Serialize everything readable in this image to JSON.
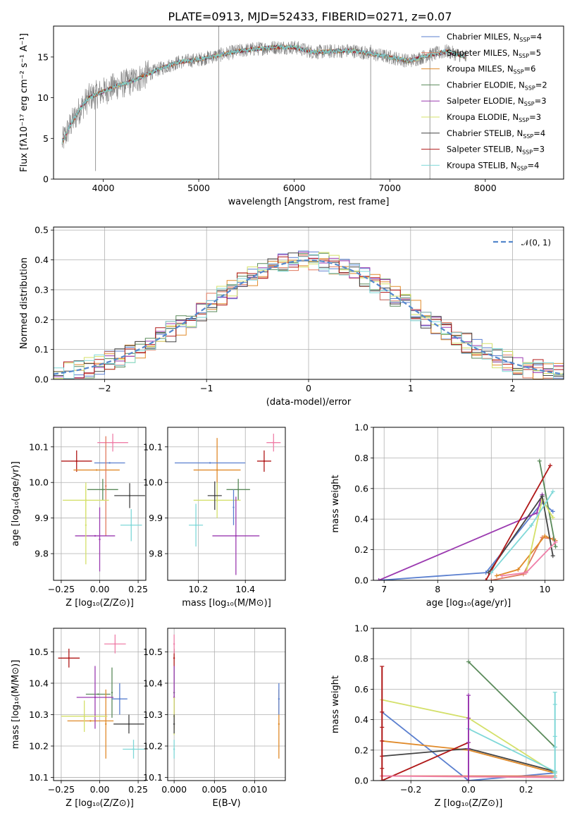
{
  "title": "PLATE=0913, MJD=52433, FIBERID=0271, z=0.07",
  "colors": {
    "chabrier_miles": "#5a7fcf",
    "salpeter_miles": "#e07a5f",
    "kroupa_miles": "#e08a2a",
    "chabrier_elodie": "#5a8a5a",
    "salpeter_elodie": "#9b3ab0",
    "kroupa_elodie": "#d4e06a",
    "chabrier_stelib": "#444444",
    "salpeter_stelib": "#b01818",
    "kroupa_stelib": "#7fd8d8",
    "pink": "#ef7fa8",
    "data": "#808080",
    "normal": "#5588cc"
  },
  "chart_data": [
    {
      "type": "line",
      "panel": "spectrum",
      "title": "PLATE=0913, MJD=52433, FIBERID=0271, z=0.07",
      "xlabel": "wavelength [Angstrom, rest frame]",
      "ylabel": "Flux [fλ10⁻¹⁷ erg cm⁻² s⁻¹ A⁻¹]",
      "xlim": [
        3480,
        8820
      ],
      "ylim": [
        0,
        18.8
      ],
      "xticks": [
        4000,
        5000,
        6000,
        7000,
        8000
      ],
      "yticks": [
        0,
        5,
        10,
        15
      ],
      "grid": false,
      "legend_position": "right",
      "legend": [
        {
          "label": "Chabrier MILES, N",
          "sub": "SSP",
          "eq": "=4",
          "color": "#5a7fcf"
        },
        {
          "label": "Salpeter MILES, N",
          "sub": "SSP",
          "eq": "=5",
          "color": "#e07a5f"
        },
        {
          "label": "Kroupa MILES, N",
          "sub": "SSP",
          "eq": "=6",
          "color": "#e08a2a"
        },
        {
          "label": "Chabrier ELODIE, N",
          "sub": "SSP",
          "eq": "=2",
          "color": "#5a8a5a"
        },
        {
          "label": "Salpeter ELODIE, N",
          "sub": "SSP",
          "eq": "=3",
          "color": "#9b3ab0"
        },
        {
          "label": "Kroupa ELODIE, N",
          "sub": "SSP",
          "eq": "=3",
          "color": "#d4e06a"
        },
        {
          "label": "Chabrier STELIB, N",
          "sub": "SSP",
          "eq": "=4",
          "color": "#444444"
        },
        {
          "label": "Salpeter STELIB, N",
          "sub": "SSP",
          "eq": "=3",
          "color": "#b01818"
        },
        {
          "label": "Kroupa STELIB, N",
          "sub": "SSP",
          "eq": "=4",
          "color": "#7fd8d8"
        }
      ],
      "continuum": {
        "x": [
          3570,
          3650,
          3750,
          3850,
          3950,
          4050,
          4150,
          4300,
          4450,
          4600,
          4800,
          5000,
          5200,
          5400,
          5600,
          5800,
          6000,
          6200,
          6400,
          6600,
          6800,
          7000,
          7200,
          7400,
          7600,
          7800
        ],
        "y": [
          4.5,
          6.5,
          8.5,
          10.0,
          10.5,
          11.0,
          11.5,
          12.0,
          12.8,
          13.6,
          14.4,
          14.7,
          15.2,
          15.7,
          16.0,
          16.2,
          16.2,
          15.6,
          15.7,
          15.8,
          15.4,
          15.0,
          14.5,
          15.2,
          15.7,
          15.0
        ]
      },
      "spikes": [
        {
          "x": 5210,
          "y0": 0,
          "y1": 18.8
        },
        {
          "x": 6800,
          "y0": 0,
          "y1": 16.5
        },
        {
          "x": 7420,
          "y0": 0,
          "y1": 14.5
        },
        {
          "x": 3920,
          "y0": 1.0,
          "y1": 11.0
        }
      ]
    },
    {
      "type": "histogram",
      "panel": "residuals",
      "xlabel": "(data-model)/error",
      "ylabel": "Normed distribution",
      "xlim": [
        -2.5,
        2.5
      ],
      "ylim": [
        0,
        0.51
      ],
      "xticks": [
        -2,
        -1,
        0,
        1,
        2
      ],
      "yticks": [
        0.0,
        0.1,
        0.2,
        0.3,
        0.4,
        0.5
      ],
      "grid": true,
      "legend_position": "top-right",
      "legend": [
        {
          "label": "𝒩(0, 1)",
          "color": "#5588cc",
          "style": "dashed"
        }
      ],
      "bin_width": 0.1,
      "series_colors": [
        "#5a7fcf",
        "#e07a5f",
        "#e08a2a",
        "#5a8a5a",
        "#9b3ab0",
        "#d4e06a",
        "#444444",
        "#b01818",
        "#7fd8d8"
      ],
      "gaussian": {
        "mu": 0,
        "sigma": 1
      }
    },
    {
      "type": "scatter",
      "panel": "age-vs-metallicity",
      "xlabel": "Z [log₁₀(Z/Z⊙)]",
      "ylabel": "age  [log₁₀(age/yr)]",
      "xlim": [
        -0.3,
        0.3
      ],
      "ylim": [
        9.725,
        10.155
      ],
      "xticks": [
        -0.25,
        0.0,
        0.25
      ],
      "xticklabels": [
        "−0.25",
        "0.00",
        "0.25"
      ],
      "yticks": [
        9.8,
        9.9,
        10.0,
        10.1
      ],
      "grid": true,
      "points": [
        {
          "x": -0.15,
          "y": 10.06,
          "ex": 0.1,
          "ey": 0.03,
          "color": "#b01818"
        },
        {
          "x": -0.02,
          "y": 10.035,
          "ex": 0.15,
          "ey": 0.0,
          "color": "#e08a2a"
        },
        {
          "x": 0.065,
          "y": 10.055,
          "ex": 0.1,
          "ey": 0.0,
          "color": "#5a7fcf"
        },
        {
          "x": 0.02,
          "y": 9.98,
          "ex": 0.1,
          "ey": 0.03,
          "color": "#5a8a5a"
        },
        {
          "x": 0.085,
          "y": 10.112,
          "ex": 0.1,
          "ey": 0.025,
          "color": "#ef7fa8"
        },
        {
          "x": 0.04,
          "y": 9.99,
          "ex": 0.0,
          "ey": 0.14,
          "color": "#e07a5f"
        },
        {
          "x": -0.09,
          "y": 9.95,
          "ex": 0.15,
          "ey": 0.05,
          "color": "#d4e06a"
        },
        {
          "x": -0.03,
          "y": 9.85,
          "ex": 0.13,
          "ey": 0.0,
          "color": "#9b3ab0"
        },
        {
          "x": 0.195,
          "y": 9.963,
          "ex": 0.1,
          "ey": 0.035,
          "color": "#444444"
        },
        {
          "x": 0.205,
          "y": 9.88,
          "ex": 0.07,
          "ey": 0.045,
          "color": "#7fd8d8"
        },
        {
          "x": -0.0,
          "y": 9.84,
          "ex": 0.0,
          "ey": 0.09,
          "color": "#9b3ab0"
        },
        {
          "x": -0.09,
          "y": 9.88,
          "ex": 0.0,
          "ey": 0.11,
          "color": "#d4e06a"
        }
      ]
    },
    {
      "type": "scatter",
      "panel": "age-vs-mass",
      "xlabel": "mass [log₁₀(M/M⊙)]",
      "ylabel": "",
      "xlim": [
        10.07,
        10.57
      ],
      "ylim": [
        9.725,
        10.155
      ],
      "xticks": [
        10.2,
        10.4
      ],
      "yticks": [
        9.8,
        9.9,
        10.0,
        10.1
      ],
      "grid": true,
      "points": [
        {
          "x": 10.48,
          "y": 10.06,
          "ex": 0.03,
          "ey": 0.03,
          "color": "#b01818"
        },
        {
          "x": 10.28,
          "y": 10.035,
          "ex": 0.1,
          "ey": 0.09,
          "color": "#e08a2a"
        },
        {
          "x": 10.25,
          "y": 10.055,
          "ex": 0.15,
          "ey": 0.0,
          "color": "#5a7fcf"
        },
        {
          "x": 10.37,
          "y": 9.98,
          "ex": 0.05,
          "ey": 0.03,
          "color": "#5a8a5a"
        },
        {
          "x": 10.52,
          "y": 10.112,
          "ex": 0.03,
          "ey": 0.025,
          "color": "#ef7fa8"
        },
        {
          "x": 10.28,
          "y": 9.95,
          "ex": 0.1,
          "ey": 0.05,
          "color": "#d4e06a"
        },
        {
          "x": 10.36,
          "y": 9.85,
          "ex": 0.1,
          "ey": 0.11,
          "color": "#9b3ab0"
        },
        {
          "x": 10.27,
          "y": 9.963,
          "ex": 0.03,
          "ey": 0.04,
          "color": "#444444"
        },
        {
          "x": 10.19,
          "y": 9.88,
          "ex": 0.03,
          "ey": 0.06,
          "color": "#7fd8d8"
        },
        {
          "x": 10.35,
          "y": 9.93,
          "ex": 0.0,
          "ey": 0.05,
          "color": "#5a7fcf"
        }
      ]
    },
    {
      "type": "line",
      "panel": "mass-weight-vs-age",
      "xlabel": "age  [log₁₀(age/yr)]",
      "ylabel": "mass weight",
      "xlim": [
        6.8,
        10.35
      ],
      "ylim": [
        0,
        1.0
      ],
      "xticks": [
        7,
        8,
        9,
        10
      ],
      "yticks": [
        0.0,
        0.2,
        0.4,
        0.6,
        0.8,
        1.0
      ],
      "grid": true,
      "series": [
        {
          "color": "#5a7fcf",
          "x": [
            6.9,
            8.9,
            9.95,
            10.15
          ],
          "y": [
            0.0,
            0.05,
            0.51,
            0.45
          ]
        },
        {
          "color": "#e07a5f",
          "x": [
            9.0,
            9.6,
            9.95,
            10.15
          ],
          "y": [
            0.0,
            0.04,
            0.28,
            0.27
          ]
        },
        {
          "color": "#e08a2a",
          "x": [
            9.1,
            9.5,
            10.0,
            10.2
          ],
          "y": [
            0.03,
            0.07,
            0.29,
            0.26
          ]
        },
        {
          "color": "#5a8a5a",
          "x": [
            9.9,
            10.2
          ],
          "y": [
            0.78,
            0.22
          ]
        },
        {
          "color": "#9b3ab0",
          "x": [
            6.9,
            9.85,
            9.95
          ],
          "y": [
            0.0,
            0.44,
            0.56
          ]
        },
        {
          "color": "#d4e06a",
          "x": [
            9.65,
            9.95,
            10.15
          ],
          "y": [
            0.05,
            0.53,
            0.41
          ]
        },
        {
          "color": "#444444",
          "x": [
            8.95,
            9.95,
            10.15
          ],
          "y": [
            0.05,
            0.55,
            0.16
          ]
        },
        {
          "color": "#b01818",
          "x": [
            8.9,
            10.1
          ],
          "y": [
            0.0,
            0.75
          ]
        },
        {
          "color": "#7fd8d8",
          "x": [
            9.0,
            9.75,
            10.15
          ],
          "y": [
            0.05,
            0.36,
            0.58
          ]
        },
        {
          "color": "#ef7fa8",
          "x": [
            9.2,
            9.65,
            10.2
          ],
          "y": [
            0.03,
            0.05,
            0.25
          ]
        }
      ]
    },
    {
      "type": "scatter",
      "panel": "mass-vs-metallicity",
      "xlabel": "Z [log₁₀(Z/Z⊙)]",
      "ylabel": "mass [log₁₀(M/M⊙)]",
      "xlim": [
        -0.3,
        0.3
      ],
      "ylim": [
        10.09,
        10.575
      ],
      "xticks": [
        -0.25,
        0.0,
        0.25
      ],
      "xticklabels": [
        "−0.25",
        "0.00",
        "0.25"
      ],
      "yticks": [
        10.1,
        10.2,
        10.3,
        10.4,
        10.5
      ],
      "grid": true,
      "points": [
        {
          "x": -0.2,
          "y": 10.48,
          "ex": 0.07,
          "ey": 0.03,
          "color": "#b01818"
        },
        {
          "x": 0.1,
          "y": 10.525,
          "ex": 0.07,
          "ey": 0.03,
          "color": "#ef7fa8"
        },
        {
          "x": -0.01,
          "y": 10.365,
          "ex": 0.08,
          "ey": 0.0,
          "color": "#5a8a5a"
        },
        {
          "x": 0.08,
          "y": 10.37,
          "ex": 0.0,
          "ey": 0.08,
          "color": "#5a8a5a"
        },
        {
          "x": 0.04,
          "y": 10.27,
          "ex": 0.0,
          "ey": 0.11,
          "color": "#e08a2a"
        },
        {
          "x": -0.06,
          "y": 10.28,
          "ex": 0.15,
          "ey": 0.0,
          "color": "#e08a2a"
        },
        {
          "x": -0.03,
          "y": 10.355,
          "ex": 0.12,
          "ey": 0.1,
          "color": "#9b3ab0"
        },
        {
          "x": 0.13,
          "y": 10.35,
          "ex": 0.05,
          "ey": 0.05,
          "color": "#5a7fcf"
        },
        {
          "x": 0.19,
          "y": 10.27,
          "ex": 0.1,
          "ey": 0.03,
          "color": "#444444"
        },
        {
          "x": 0.22,
          "y": 10.19,
          "ex": 0.07,
          "ey": 0.03,
          "color": "#7fd8d8"
        },
        {
          "x": -0.1,
          "y": 10.295,
          "ex": 0.15,
          "ey": 0.05,
          "color": "#d4e06a"
        }
      ]
    },
    {
      "type": "scatter",
      "panel": "mass-vs-extinction",
      "xlabel": "E(B-V)",
      "ylabel": "",
      "xlim": [
        -0.0008,
        0.0138
      ],
      "ylim": [
        10.09,
        10.575
      ],
      "xticks": [
        0.0,
        0.005,
        0.01
      ],
      "xticklabels": [
        "0.000",
        "0.005",
        "0.010"
      ],
      "yticks": [
        10.1,
        10.2,
        10.3,
        10.4,
        10.5
      ],
      "grid": true,
      "points": [
        {
          "x": 0.0,
          "y": 10.48,
          "ex": 0.0,
          "ey": 0.03,
          "color": "#b01818"
        },
        {
          "x": 0.0,
          "y": 10.525,
          "ex": 0.0,
          "ey": 0.03,
          "color": "#ef7fa8"
        },
        {
          "x": 0.0,
          "y": 10.37,
          "ex": 0.0,
          "ey": 0.08,
          "color": "#5a8a5a"
        },
        {
          "x": 0.0,
          "y": 10.355,
          "ex": 0.0,
          "ey": 0.1,
          "color": "#9b3ab0"
        },
        {
          "x": 0.0,
          "y": 10.295,
          "ex": 0.0,
          "ey": 0.06,
          "color": "#d4e06a"
        },
        {
          "x": 0.0,
          "y": 10.27,
          "ex": 0.0,
          "ey": 0.03,
          "color": "#444444"
        },
        {
          "x": 0.0,
          "y": 10.19,
          "ex": 0.0,
          "ey": 0.03,
          "color": "#7fd8d8"
        },
        {
          "x": 0.013,
          "y": 10.27,
          "ex": 0.0,
          "ey": 0.11,
          "color": "#e08a2a"
        },
        {
          "x": 0.013,
          "y": 10.35,
          "ex": 0.0,
          "ey": 0.05,
          "color": "#5a7fcf"
        }
      ]
    },
    {
      "type": "line",
      "panel": "mass-weight-vs-metallicity",
      "xlabel": "Z [log₁₀(Z/Z⊙)]",
      "ylabel": "mass weight",
      "xlim": [
        -0.33,
        0.33
      ],
      "ylim": [
        0,
        1.0
      ],
      "xticks": [
        -0.2,
        0.0,
        0.2
      ],
      "xticklabels": [
        "−0.2",
        "0.0",
        "0.2"
      ],
      "yticks": [
        0.0,
        0.2,
        0.4,
        0.6,
        0.8,
        1.0
      ],
      "grid": true,
      "series": [
        {
          "color": "#5a7fcf",
          "x": [
            -0.3,
            0.0,
            0.3
          ],
          "y": [
            0.45,
            0.0,
            0.05
          ]
        },
        {
          "color": "#e07a5f",
          "x": [
            -0.3,
            0.3
          ],
          "y": [
            0.03,
            0.03
          ]
        },
        {
          "color": "#e08a2a",
          "x": [
            -0.3,
            0.0,
            0.3
          ],
          "y": [
            0.26,
            0.2,
            0.05
          ]
        },
        {
          "color": "#5a8a5a",
          "x": [
            0.0,
            0.3
          ],
          "y": [
            0.78,
            0.22
          ]
        },
        {
          "color": "#9b3ab0",
          "x": [
            0.0,
            0.0
          ],
          "y": [
            0.0,
            0.56
          ]
        },
        {
          "color": "#d4e06a",
          "x": [
            -0.3,
            0.0,
            0.3
          ],
          "y": [
            0.53,
            0.41,
            0.05
          ]
        },
        {
          "color": "#444444",
          "x": [
            -0.3,
            0.0,
            0.3
          ],
          "y": [
            0.16,
            0.21,
            0.06
          ]
        },
        {
          "color": "#b01818",
          "x": [
            -0.3,
            0.0
          ],
          "y": [
            0.0,
            0.25
          ]
        },
        {
          "color": "#7fd8d8",
          "x": [
            0.0,
            0.3
          ],
          "y": [
            0.34,
            0.06
          ]
        },
        {
          "color": "#ef7fa8",
          "x": [
            -0.3,
            0.3
          ],
          "y": [
            0.03,
            0.02
          ]
        }
      ],
      "vertical_markers": [
        {
          "x": -0.3,
          "ys": [
            0.0,
            0.08,
            0.16,
            0.26,
            0.35,
            0.45,
            0.75
          ],
          "color": "#b01818"
        },
        {
          "x": 0.0,
          "ys": [
            0.0,
            0.21,
            0.25,
            0.41,
            0.56
          ],
          "color": "#9b3ab0"
        },
        {
          "x": 0.3,
          "ys": [
            0.02,
            0.05,
            0.06,
            0.22,
            0.29,
            0.5,
            0.58
          ],
          "color": "#7fd8d8"
        }
      ]
    }
  ]
}
